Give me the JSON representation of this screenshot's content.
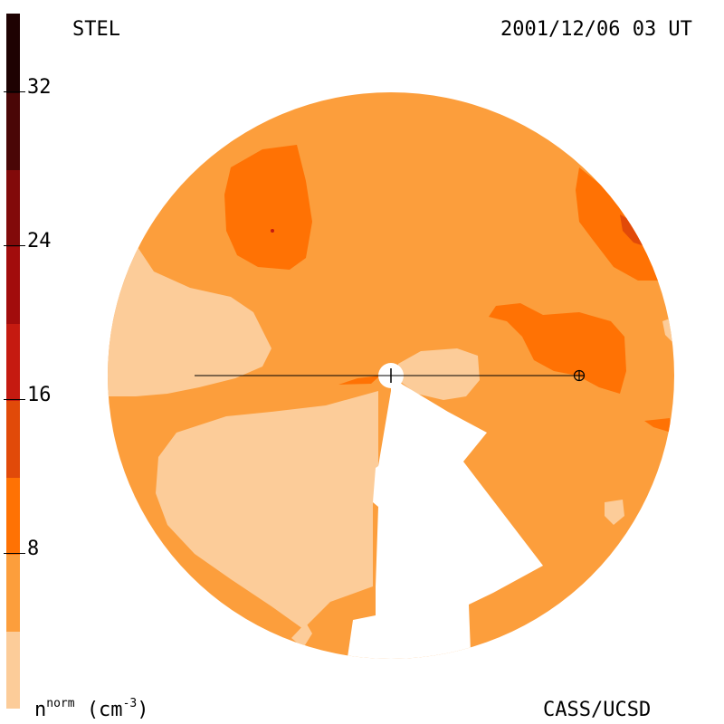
{
  "header": {
    "instrument": "STEL",
    "datetime": "2001/12/06 03 UT"
  },
  "footer": {
    "quantity": "n",
    "quantity_sup": "norm",
    "unit": "(cm",
    "unit_sup": "-3",
    "unit_close": ")",
    "credit": "CASS/UCSD"
  },
  "colorbar": {
    "ticks": [
      "8",
      "16",
      "24",
      "32"
    ],
    "levels": [
      0,
      4,
      8,
      12,
      16,
      20,
      24,
      28,
      32,
      36
    ],
    "colors": [
      "#fccc99",
      "#fc9e3c",
      "#ff7204",
      "#e14a09",
      "#c51a10",
      "#a20c0c",
      "#820a0a",
      "#5c0707",
      "#3a0404",
      "#1e0202"
    ]
  },
  "map_colors": {
    "low": "#fccc99",
    "mid": "#fc9e3c",
    "high": "#ff7204",
    "higher": "#e14a09",
    "peak": "#b83a10",
    "marker": "#000000"
  }
}
